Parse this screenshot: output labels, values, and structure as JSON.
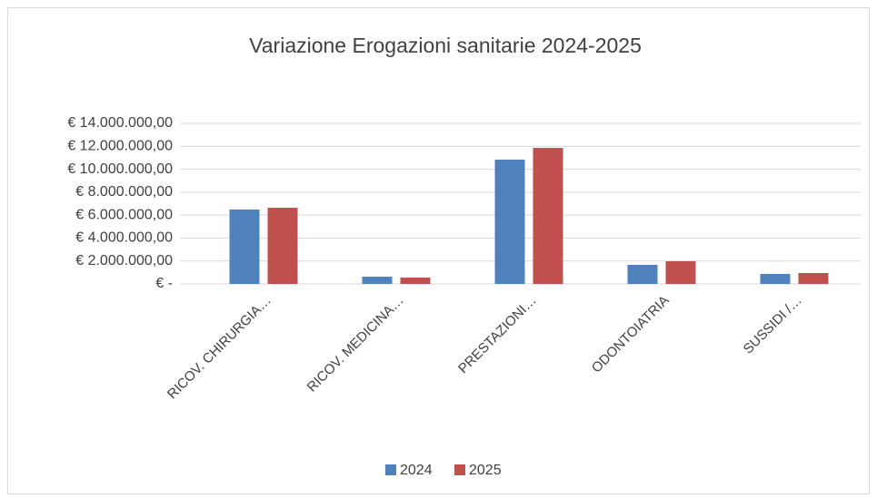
{
  "chart_data": {
    "type": "bar",
    "title": "Variazione Erogazioni sanitarie 2024-2025",
    "categories": [
      "RICOV. CHIRURGIA…",
      "RICOV. MEDICINA…",
      "PRESTAZIONI…",
      "ODONTOIATRIA",
      "SUSSIDI /…"
    ],
    "series": [
      {
        "name": "2024",
        "color": "#4f81bd",
        "values": [
          6490000,
          630000,
          10840000,
          1660000,
          870000
        ]
      },
      {
        "name": "2025",
        "color": "#c0504d",
        "values": [
          6640000,
          550000,
          11860000,
          1980000,
          950000
        ]
      }
    ],
    "ylim": [
      0,
      14000000
    ],
    "yticks": [
      {
        "value": 0,
        "label": "€ -"
      },
      {
        "value": 2000000,
        "label": "€ 2.000.000,00"
      },
      {
        "value": 4000000,
        "label": "€ 4.000.000,00"
      },
      {
        "value": 6000000,
        "label": "€ 6.000.000,00"
      },
      {
        "value": 8000000,
        "label": "€ 8.000.000,00"
      },
      {
        "value": 10000000,
        "label": "€ 10.000.000,00"
      },
      {
        "value": 12000000,
        "label": "€ 12.000.000,00"
      },
      {
        "value": 14000000,
        "label": "€ 14.000.000,00"
      }
    ],
    "grid": true,
    "legend": "bottom"
  }
}
